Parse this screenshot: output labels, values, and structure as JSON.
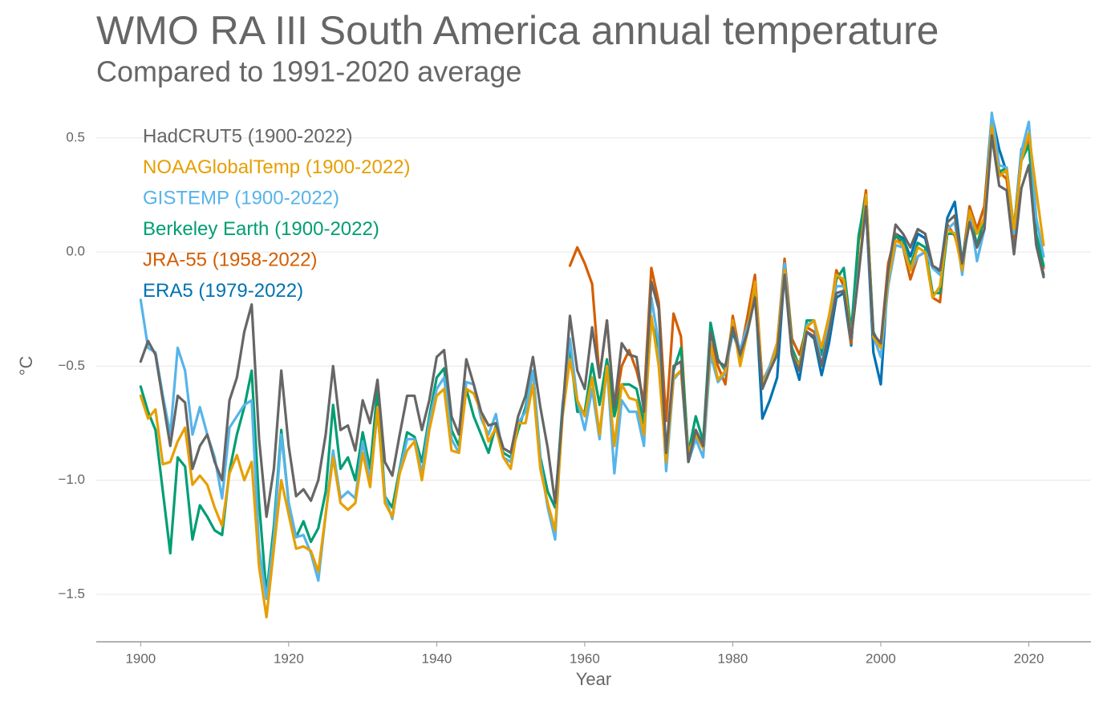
{
  "chart_data": {
    "type": "line",
    "title": "WMO RA III South America annual temperature",
    "subtitle": "Compared to 1991-2020 average",
    "x_label": "Year",
    "y_label": "°C",
    "x": [
      1900,
      1901,
      1902,
      1903,
      1904,
      1905,
      1906,
      1907,
      1908,
      1909,
      1910,
      1911,
      1912,
      1913,
      1914,
      1915,
      1916,
      1917,
      1918,
      1919,
      1920,
      1921,
      1922,
      1923,
      1924,
      1925,
      1926,
      1927,
      1928,
      1929,
      1930,
      1931,
      1932,
      1933,
      1934,
      1935,
      1936,
      1937,
      1938,
      1939,
      1940,
      1941,
      1942,
      1943,
      1944,
      1945,
      1946,
      1947,
      1948,
      1949,
      1950,
      1951,
      1952,
      1953,
      1954,
      1955,
      1956,
      1957,
      1958,
      1959,
      1960,
      1961,
      1962,
      1963,
      1964,
      1965,
      1966,
      1967,
      1968,
      1969,
      1970,
      1971,
      1972,
      1973,
      1974,
      1975,
      1976,
      1977,
      1978,
      1979,
      1980,
      1981,
      1982,
      1983,
      1984,
      1985,
      1986,
      1987,
      1988,
      1989,
      1990,
      1991,
      1992,
      1993,
      1994,
      1995,
      1996,
      1997,
      1998,
      1999,
      2000,
      2001,
      2002,
      2003,
      2004,
      2005,
      2006,
      2007,
      2008,
      2009,
      2010,
      2011,
      2012,
      2013,
      2014,
      2015,
      2016,
      2017,
      2018,
      2019,
      2020,
      2021,
      2022
    ],
    "series": [
      {
        "name": "HadCRUT5 (1900-2022)",
        "color": "#666666",
        "values": [
          -0.48,
          -0.39,
          -0.45,
          -0.65,
          -0.85,
          -0.63,
          -0.66,
          -0.95,
          -0.85,
          -0.8,
          -0.92,
          -1.0,
          -0.65,
          -0.55,
          -0.35,
          -0.23,
          -0.82,
          -1.16,
          -0.95,
          -0.52,
          -0.85,
          -1.07,
          -1.04,
          -1.09,
          -1.0,
          -0.8,
          -0.5,
          -0.78,
          -0.76,
          -0.87,
          -0.65,
          -0.75,
          -0.56,
          -0.92,
          -0.98,
          -0.8,
          -0.63,
          -0.63,
          -0.78,
          -0.65,
          -0.46,
          -0.43,
          -0.72,
          -0.8,
          -0.47,
          -0.58,
          -0.7,
          -0.76,
          -0.75,
          -0.86,
          -0.88,
          -0.72,
          -0.63,
          -0.46,
          -0.68,
          -0.86,
          -1.1,
          -0.7,
          -0.28,
          -0.52,
          -0.6,
          -0.33,
          -0.55,
          -0.3,
          -0.68,
          -0.4,
          -0.45,
          -0.46,
          -0.7,
          -0.13,
          -0.25,
          -0.88,
          -0.5,
          -0.48,
          -0.92,
          -0.78,
          -0.85,
          -0.35,
          -0.48,
          -0.5,
          -0.33,
          -0.45,
          -0.35,
          -0.2,
          -0.6,
          -0.52,
          -0.45,
          -0.1,
          -0.45,
          -0.52,
          -0.35,
          -0.37,
          -0.5,
          -0.35,
          -0.18,
          -0.17,
          -0.38,
          -0.1,
          0.2,
          -0.36,
          -0.4,
          -0.08,
          0.12,
          0.08,
          0.02,
          0.1,
          0.08,
          -0.06,
          -0.08,
          0.13,
          0.16,
          -0.05,
          0.13,
          0.02,
          0.1,
          0.51,
          0.29,
          0.27,
          -0.01,
          0.28,
          0.38,
          0.03,
          -0.11
        ]
      },
      {
        "name": "NOAAGlobalTemp (1900-2022)",
        "color": "#E69F00",
        "values": [
          -0.63,
          -0.73,
          -0.69,
          -0.93,
          -0.92,
          -0.83,
          -0.77,
          -1.02,
          -0.98,
          -1.02,
          -1.12,
          -1.2,
          -0.97,
          -0.89,
          -1.0,
          -0.92,
          -1.38,
          -1.6,
          -1.3,
          -1.0,
          -1.15,
          -1.3,
          -1.29,
          -1.31,
          -1.4,
          -1.15,
          -0.9,
          -1.1,
          -1.13,
          -1.1,
          -0.88,
          -1.03,
          -0.68,
          -1.1,
          -1.16,
          -0.97,
          -0.87,
          -0.83,
          -1.0,
          -0.78,
          -0.63,
          -0.6,
          -0.87,
          -0.88,
          -0.6,
          -0.62,
          -0.7,
          -0.83,
          -0.77,
          -0.9,
          -0.95,
          -0.75,
          -0.75,
          -0.58,
          -0.95,
          -1.1,
          -1.22,
          -0.72,
          -0.47,
          -0.65,
          -0.72,
          -0.55,
          -0.8,
          -0.5,
          -0.85,
          -0.58,
          -0.64,
          -0.65,
          -0.8,
          -0.28,
          -0.5,
          -0.92,
          -0.55,
          -0.52,
          -0.88,
          -0.8,
          -0.86,
          -0.4,
          -0.56,
          -0.52,
          -0.3,
          -0.5,
          -0.35,
          -0.13,
          -0.58,
          -0.52,
          -0.4,
          -0.08,
          -0.45,
          -0.5,
          -0.33,
          -0.3,
          -0.42,
          -0.28,
          -0.1,
          -0.12,
          -0.38,
          -0.1,
          0.25,
          -0.37,
          -0.42,
          -0.12,
          0.05,
          0.03,
          -0.08,
          0.02,
          0.0,
          -0.2,
          -0.15,
          0.1,
          0.08,
          -0.08,
          0.18,
          0.08,
          0.15,
          0.55,
          0.33,
          0.36,
          0.1,
          0.4,
          0.52,
          0.27,
          0.03
        ]
      },
      {
        "name": "GISTEMP (1900-2022)",
        "color": "#56B4E9",
        "values": [
          -0.21,
          -0.42,
          -0.44,
          -0.63,
          -0.8,
          -0.42,
          -0.52,
          -0.8,
          -0.68,
          -0.8,
          -0.9,
          -1.08,
          -0.77,
          -0.72,
          -0.67,
          -0.65,
          -1.3,
          -1.52,
          -1.25,
          -0.8,
          -1.1,
          -1.25,
          -1.24,
          -1.32,
          -1.44,
          -1.15,
          -0.87,
          -1.08,
          -1.05,
          -1.08,
          -0.83,
          -1.0,
          -0.7,
          -1.07,
          -1.17,
          -0.96,
          -0.82,
          -0.82,
          -0.97,
          -0.74,
          -0.6,
          -0.55,
          -0.82,
          -0.88,
          -0.57,
          -0.58,
          -0.73,
          -0.8,
          -0.71,
          -0.9,
          -0.92,
          -0.75,
          -0.7,
          -0.52,
          -0.92,
          -1.12,
          -1.26,
          -0.68,
          -0.38,
          -0.65,
          -0.78,
          -0.6,
          -0.82,
          -0.5,
          -0.97,
          -0.65,
          -0.7,
          -0.7,
          -0.85,
          -0.2,
          -0.4,
          -0.96,
          -0.56,
          -0.52,
          -0.92,
          -0.82,
          -0.9,
          -0.45,
          -0.57,
          -0.53,
          -0.33,
          -0.43,
          -0.32,
          -0.2,
          -0.58,
          -0.5,
          -0.4,
          -0.05,
          -0.45,
          -0.52,
          -0.32,
          -0.3,
          -0.5,
          -0.32,
          -0.15,
          -0.15,
          -0.38,
          -0.08,
          0.2,
          -0.37,
          -0.46,
          -0.15,
          0.03,
          0.02,
          -0.08,
          -0.02,
          0.0,
          -0.07,
          -0.1,
          0.1,
          0.13,
          -0.1,
          0.18,
          -0.04,
          0.1,
          0.61,
          0.38,
          0.37,
          0.08,
          0.44,
          0.57,
          0.15,
          -0.02
        ]
      },
      {
        "name": "Berkeley Earth (1900-2022)",
        "color": "#009E73",
        "values": [
          -0.59,
          -0.7,
          -0.78,
          -1.05,
          -1.32,
          -0.9,
          -0.94,
          -1.26,
          -1.11,
          -1.16,
          -1.22,
          -1.24,
          -0.96,
          -0.8,
          -0.68,
          -0.52,
          -1.1,
          -1.5,
          -1.2,
          -0.78,
          -1.1,
          -1.25,
          -1.18,
          -1.27,
          -1.21,
          -1.05,
          -0.67,
          -0.95,
          -0.9,
          -1.0,
          -0.79,
          -0.95,
          -0.6,
          -1.07,
          -1.12,
          -0.95,
          -0.79,
          -0.81,
          -0.92,
          -0.72,
          -0.55,
          -0.51,
          -0.78,
          -0.85,
          -0.6,
          -0.72,
          -0.8,
          -0.88,
          -0.76,
          -0.88,
          -0.9,
          -0.78,
          -0.68,
          -0.52,
          -0.9,
          -1.05,
          -1.12,
          -0.67,
          -0.43,
          -0.7,
          -0.7,
          -0.49,
          -0.67,
          -0.47,
          -0.72,
          -0.58,
          -0.58,
          -0.6,
          -0.75,
          -0.3,
          -0.42,
          -0.9,
          -0.52,
          -0.42,
          -0.88,
          -0.72,
          -0.83,
          -0.31,
          -0.47,
          -0.52,
          -0.33,
          -0.47,
          -0.33,
          -0.16,
          -0.57,
          -0.52,
          -0.42,
          -0.05,
          -0.42,
          -0.5,
          -0.3,
          -0.3,
          -0.45,
          -0.3,
          -0.12,
          -0.07,
          -0.35,
          0.07,
          0.25,
          -0.35,
          -0.42,
          -0.1,
          0.07,
          0.05,
          -0.06,
          0.04,
          0.02,
          -0.18,
          -0.18,
          0.08,
          0.08,
          -0.05,
          0.17,
          0.03,
          0.15,
          0.53,
          0.35,
          0.37,
          0.1,
          0.4,
          0.47,
          0.08,
          -0.06
        ]
      },
      {
        "name": "JRA-55 (1958-2022)",
        "color": "#D55E00",
        "values": [
          null,
          null,
          null,
          null,
          null,
          null,
          null,
          null,
          null,
          null,
          null,
          null,
          null,
          null,
          null,
          null,
          null,
          null,
          null,
          null,
          null,
          null,
          null,
          null,
          null,
          null,
          null,
          null,
          null,
          null,
          null,
          null,
          null,
          null,
          null,
          null,
          null,
          null,
          null,
          null,
          null,
          null,
          null,
          null,
          null,
          null,
          null,
          null,
          null,
          null,
          null,
          null,
          null,
          null,
          null,
          null,
          null,
          null,
          -0.06,
          0.02,
          -0.05,
          -0.14,
          -0.55,
          -0.3,
          -0.7,
          -0.5,
          -0.43,
          -0.52,
          -0.65,
          -0.07,
          -0.22,
          -0.74,
          -0.27,
          -0.37,
          -0.9,
          -0.78,
          -0.85,
          -0.4,
          -0.5,
          -0.58,
          -0.28,
          -0.45,
          -0.28,
          -0.1,
          -0.57,
          -0.5,
          -0.4,
          -0.03,
          -0.38,
          -0.45,
          -0.33,
          -0.35,
          -0.45,
          -0.3,
          -0.08,
          -0.15,
          -0.4,
          0.05,
          0.27,
          -0.38,
          -0.4,
          -0.05,
          0.08,
          0.02,
          -0.12,
          -0.02,
          0.0,
          -0.2,
          -0.22,
          0.12,
          0.07,
          -0.05,
          0.2,
          0.1,
          0.2,
          0.55,
          0.35,
          0.32,
          0.05,
          0.42,
          0.5,
          0.05,
          -0.07
        ]
      },
      {
        "name": "ERA5 (1979-2022)",
        "color": "#0072B2",
        "values": [
          null,
          null,
          null,
          null,
          null,
          null,
          null,
          null,
          null,
          null,
          null,
          null,
          null,
          null,
          null,
          null,
          null,
          null,
          null,
          null,
          null,
          null,
          null,
          null,
          null,
          null,
          null,
          null,
          null,
          null,
          null,
          null,
          null,
          null,
          null,
          null,
          null,
          null,
          null,
          null,
          null,
          null,
          null,
          null,
          null,
          null,
          null,
          null,
          null,
          null,
          null,
          null,
          null,
          null,
          null,
          null,
          null,
          null,
          null,
          null,
          null,
          null,
          null,
          null,
          null,
          null,
          null,
          null,
          null,
          null,
          null,
          null,
          null,
          null,
          null,
          null,
          null,
          null,
          null,
          -0.52,
          -0.35,
          -0.45,
          -0.3,
          -0.15,
          -0.73,
          -0.65,
          -0.55,
          -0.08,
          -0.45,
          -0.56,
          -0.35,
          -0.38,
          -0.54,
          -0.4,
          -0.2,
          -0.18,
          -0.41,
          0.05,
          0.2,
          -0.44,
          -0.58,
          -0.1,
          0.08,
          0.06,
          -0.02,
          0.08,
          0.06,
          -0.07,
          -0.09,
          0.15,
          0.22,
          -0.05,
          0.2,
          0.1,
          0.2,
          0.6,
          0.45,
          0.35,
          0.1,
          0.45,
          0.5,
          0.04,
          -0.1
        ]
      }
    ],
    "xlim": [
      1894,
      2028.4
    ],
    "xticks": [
      1900,
      1920,
      1940,
      1960,
      1980,
      2000,
      2020
    ],
    "ylim": [
      -1.708,
      0.612
    ],
    "yticks": [
      0.5,
      {
        "value": 0.0,
        "label": "0.0"
      },
      {
        "value": -0.5,
        "label": "−0.5"
      },
      {
        "value": -1.0,
        "label": "−1.0"
      },
      {
        "value": -1.5,
        "label": "−1.5"
      }
    ],
    "grid": true,
    "legend": "upper left"
  }
}
